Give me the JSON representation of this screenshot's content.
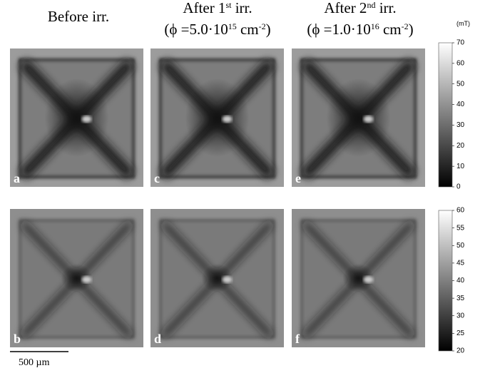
{
  "headers": [
    {
      "lines": [
        [
          "Before irr."
        ]
      ]
    },
    {
      "lines": [
        [
          "After 1",
          "st",
          " irr."
        ],
        [
          "(ϕ =5.0·10",
          "15",
          " cm",
          "-2",
          ")"
        ]
      ]
    },
    {
      "lines": [
        [
          "After 2",
          "nd",
          " irr."
        ],
        [
          "(ϕ =1.0·10",
          "16",
          " cm",
          "-2",
          ")"
        ]
      ]
    }
  ],
  "panel_labels": [
    [
      "a",
      "c",
      "e"
    ],
    [
      "b",
      "d",
      "f"
    ]
  ],
  "colorbar_unit": "(mT)",
  "colorbars": [
    {
      "ticks": [
        0,
        10,
        20,
        30,
        40,
        50,
        60,
        70
      ]
    },
    {
      "ticks": [
        20,
        25,
        30,
        35,
        40,
        45,
        50,
        55,
        60
      ]
    }
  ],
  "scale_bar": "500 µm"
}
